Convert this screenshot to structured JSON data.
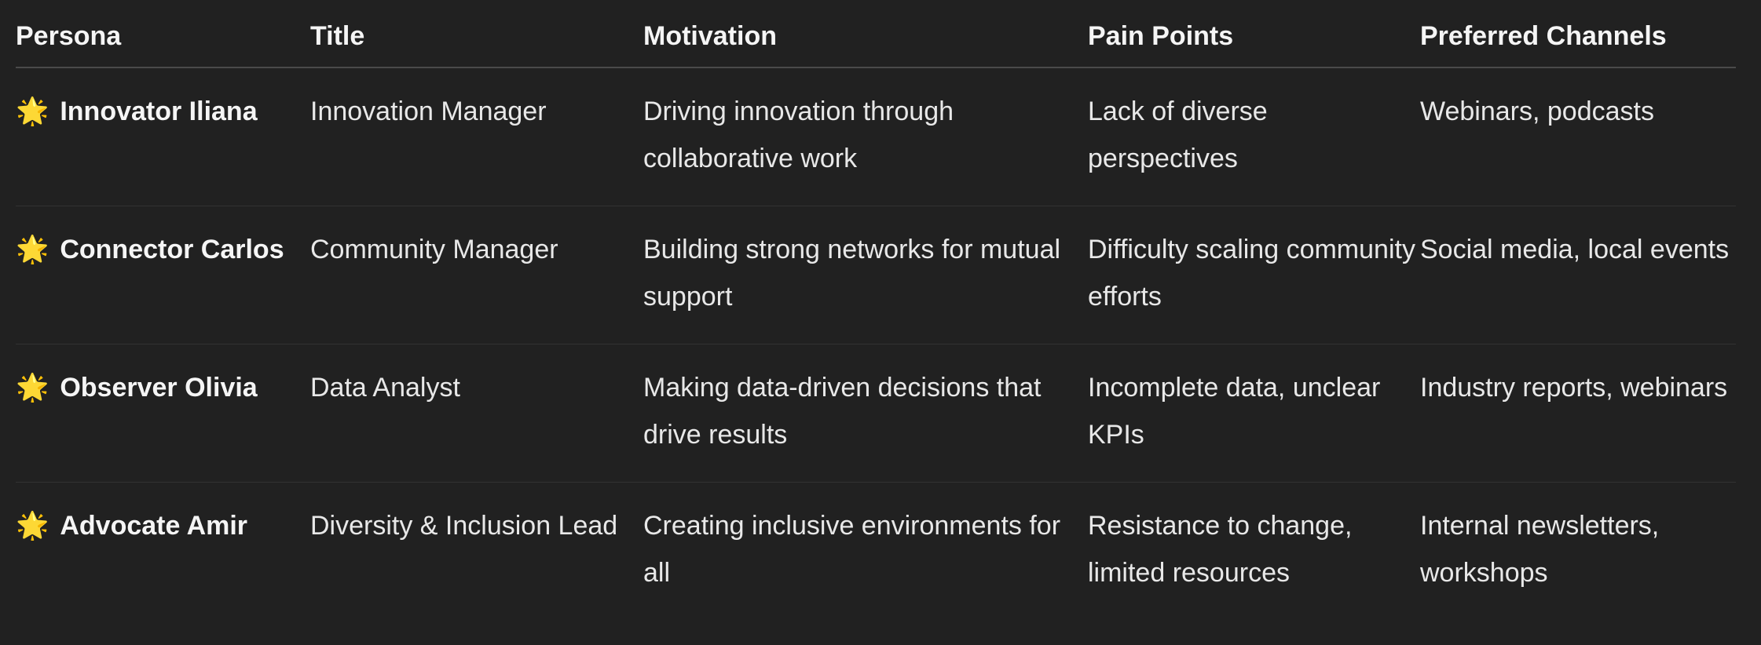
{
  "table": {
    "headers": [
      "Persona",
      "Title",
      "Motivation",
      "Pain Points",
      "Preferred Channels"
    ],
    "rows": [
      {
        "persona_icon": "star-icon",
        "persona": "Innovator Iliana",
        "title": "Innovation Manager",
        "motivation": "Driving innovation through collaborative work",
        "pain_points": "Lack of diverse perspectives",
        "channels": "Webinars, podcasts"
      },
      {
        "persona_icon": "star-icon",
        "persona": "Connector Carlos",
        "title": "Community Manager",
        "motivation": "Building strong networks for mutual support",
        "pain_points": "Difficulty scaling community efforts",
        "channels": "Social media, local events"
      },
      {
        "persona_icon": "star-icon",
        "persona": "Observer Olivia",
        "title": "Data Analyst",
        "motivation": "Making data-driven decisions that drive results",
        "pain_points": "Incomplete data, unclear KPIs",
        "channels": "Industry reports, webinars"
      },
      {
        "persona_icon": "star-icon",
        "persona": "Advocate Amir",
        "title": "Diversity & Inclusion Lead",
        "motivation": "Creating inclusive environments for all",
        "pain_points": "Resistance to change, limited resources",
        "channels": "Internal newsletters, workshops"
      }
    ]
  }
}
